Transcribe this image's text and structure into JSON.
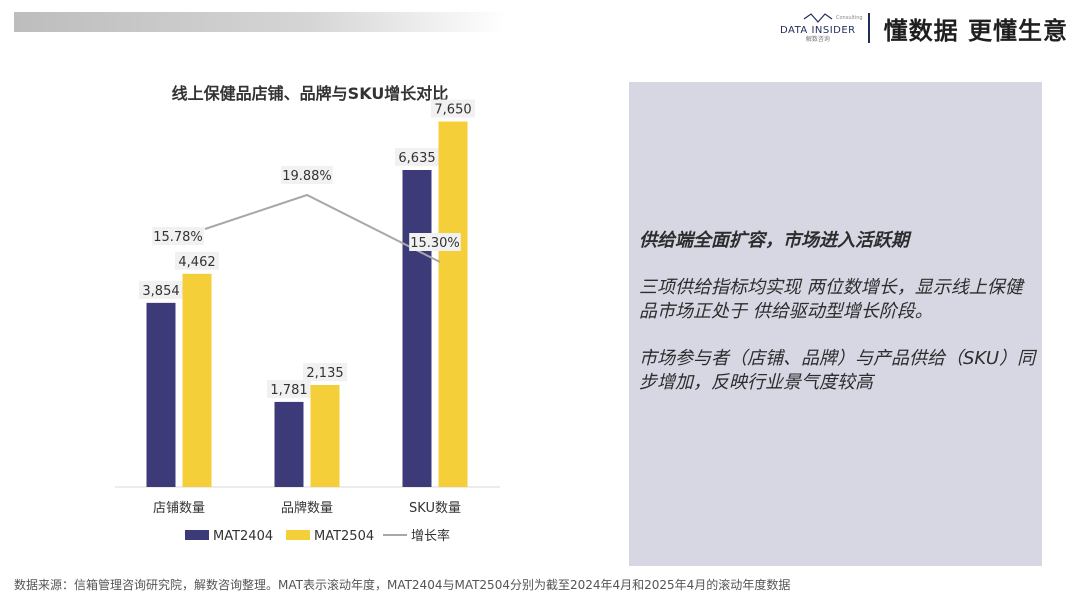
{
  "header": {
    "brand_name": "DATA INSIDER",
    "brand_sub": "解数咨询",
    "brand_consulting": "Consulting",
    "slogan": "懂数据 更懂生意"
  },
  "chart_data": {
    "type": "bar",
    "title": "线上保健品店铺、品牌与SKU增长对比",
    "categories": [
      "店铺数量",
      "品牌数量",
      "SKU数量"
    ],
    "series": [
      {
        "name": "MAT2404",
        "type": "bar",
        "values": [
          3854,
          1781,
          6635
        ],
        "labels": [
          "3,854",
          "1,781",
          "6,635"
        ],
        "color": "#3c3a78"
      },
      {
        "name": "MAT2504",
        "type": "bar",
        "values": [
          4462,
          2135,
          7650
        ],
        "labels": [
          "4,462",
          "2,135",
          "7,650"
        ],
        "color": "#f5cf3a"
      },
      {
        "name": "增长率",
        "type": "line",
        "values": [
          15.78,
          19.88,
          15.3
        ],
        "labels": [
          "15.78%",
          "19.88%",
          "15.30%"
        ],
        "color": "#a8a8a8"
      }
    ],
    "ylim": [
      0,
      8100
    ],
    "grid": false,
    "legend": "bottom"
  },
  "panel": {
    "headline": "供给端全面扩容，市场进入活跃期",
    "para1": "三项供给指标均实现 两位数增长，显示线上保健品市场正处于 供给驱动型增长阶段。",
    "para2": "市场参与者（店铺、品牌）与产品供给（SKU）同步增加，反映行业景气度较高"
  },
  "footnote": "数据来源：信箱管理咨询研究院，解数咨询整理。MAT表示滚动年度，MAT2404与MAT2504分别为截至2024年4月和2025年4月的滚动年度数据"
}
